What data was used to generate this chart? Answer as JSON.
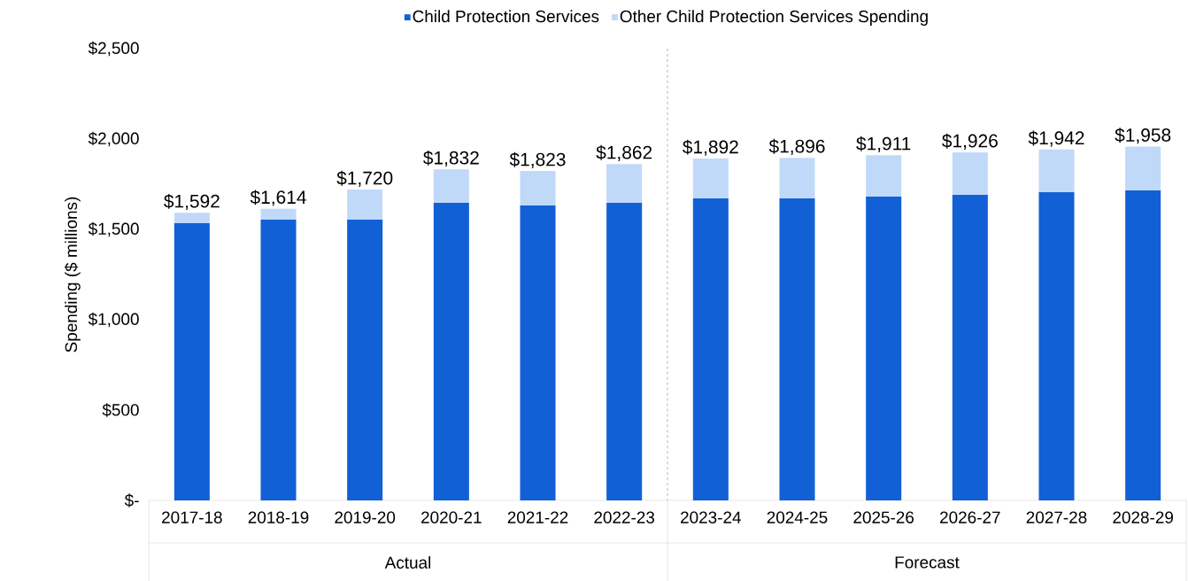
{
  "chart_data": {
    "type": "bar",
    "stacked": true,
    "ylabel": "Spending ($ millions)",
    "legend": "top",
    "categories": [
      "2017-18",
      "2018-19",
      "2019-20",
      "2020-21",
      "2021-22",
      "2022-23",
      "2023-24",
      "2024-25",
      "2025-26",
      "2026-27",
      "2027-28",
      "2028-29"
    ],
    "series": [
      {
        "name": "Child Protection Services",
        "color": "#1160d6",
        "values": [
          1534,
          1554,
          1554,
          1647,
          1632,
          1647,
          1672,
          1672,
          1681,
          1691,
          1706,
          1716
        ]
      },
      {
        "name": "Other Child Protection Services Spending",
        "color": "#c1d9f9",
        "values": [
          58,
          60,
          166,
          185,
          191,
          215,
          220,
          224,
          230,
          235,
          236,
          242
        ]
      }
    ],
    "totals": [
      "$1,592",
      "$1,614",
      "$1,720",
      "$1,832",
      "$1,823",
      "$1,862",
      "$1,892",
      "$1,896",
      "$1,911",
      "$1,926",
      "$1,942",
      "$1,958"
    ],
    "ylim": [
      0,
      2500
    ],
    "yticks": [
      {
        "value": 0,
        "label": "$-"
      },
      {
        "value": 500,
        "label": "$500"
      },
      {
        "value": 1000,
        "label": "$1,000"
      },
      {
        "value": 1500,
        "label": "$1,500"
      },
      {
        "value": 2000,
        "label": "$2,000"
      },
      {
        "value": 2500,
        "label": "$2,500"
      }
    ],
    "grid": false,
    "annotations": [
      "Actual",
      "Forecast"
    ]
  }
}
